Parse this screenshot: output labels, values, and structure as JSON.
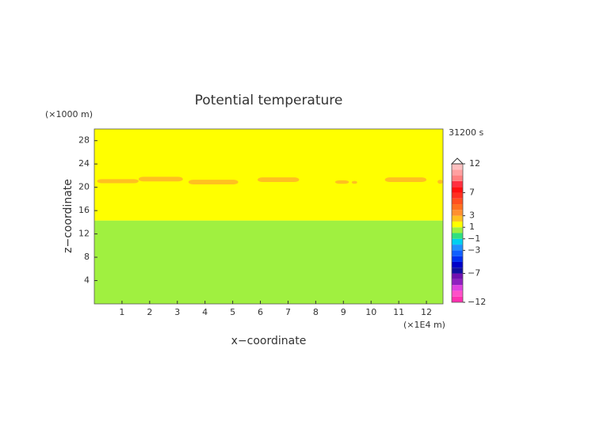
{
  "chart_data": {
    "type": "contour",
    "title": "Potential temperature",
    "y_unit_label": "(×1000 m)",
    "x_unit_label": "(×1E4 m)",
    "time_label": "31200 s",
    "xlabel": "x−coordinate",
    "ylabel": "z−coordinate",
    "xlim": [
      0,
      12.6
    ],
    "ylim": [
      0,
      30
    ],
    "xticks": [
      1,
      2,
      3,
      4,
      5,
      6,
      7,
      8,
      9,
      10,
      11,
      12
    ],
    "yticks": [
      4,
      8,
      12,
      16,
      20,
      24,
      28
    ],
    "regions": [
      {
        "x": [
          0,
          12.6
        ],
        "z": [
          0,
          14.3
        ],
        "value": 0.5
      },
      {
        "x": [
          0,
          12.6
        ],
        "z": [
          14.3,
          30
        ],
        "value": 1.5
      },
      {
        "x": [
          0.1,
          1.6
        ],
        "z": [
          20.7,
          21.4
        ],
        "value": 2.5
      },
      {
        "x": [
          1.6,
          3.2
        ],
        "z": [
          21.0,
          21.8
        ],
        "value": 2.5
      },
      {
        "x": [
          3.4,
          5.2
        ],
        "z": [
          20.5,
          21.3
        ],
        "value": 2.5
      },
      {
        "x": [
          5.9,
          7.4
        ],
        "z": [
          20.9,
          21.7
        ],
        "value": 2.5
      },
      {
        "x": [
          8.7,
          9.2
        ],
        "z": [
          20.6,
          21.2
        ],
        "value": 2.5
      },
      {
        "x": [
          9.3,
          9.5
        ],
        "z": [
          20.6,
          21.1
        ],
        "value": 2.5
      },
      {
        "x": [
          10.5,
          12.0
        ],
        "z": [
          20.9,
          21.7
        ],
        "value": 2.5
      },
      {
        "x": [
          12.4,
          12.6
        ],
        "z": [
          20.6,
          21.3
        ],
        "value": 2.5
      }
    ],
    "colorbar": {
      "levels": [
        -12,
        -11,
        -10,
        -9,
        -8,
        -7,
        -6,
        -5,
        -4,
        -3,
        -2,
        -1,
        0,
        1,
        2,
        3,
        4,
        5,
        6,
        7,
        8,
        9,
        10,
        11,
        12
      ],
      "colors": [
        "#ff30b0",
        "#ff50c8",
        "#e040e0",
        "#9020c0",
        "#7010b0",
        "#1010a0",
        "#0000c8",
        "#0030f0",
        "#1060ff",
        "#2090ff",
        "#00d0f0",
        "#30e080",
        "#a0f040",
        "#ffff00",
        "#ffc020",
        "#ff9030",
        "#ff7020",
        "#ff5020",
        "#ff3020",
        "#ff1010",
        "#ff3040",
        "#ff8080",
        "#ffa0a0",
        "#ffc0c0"
      ],
      "ticks": [
        {
          "value": -12,
          "label": "−12"
        },
        {
          "value": -7,
          "label": "−7"
        },
        {
          "value": -3,
          "label": "−3"
        },
        {
          "value": -1,
          "label": "−1"
        },
        1,
        3,
        7,
        12
      ]
    }
  }
}
